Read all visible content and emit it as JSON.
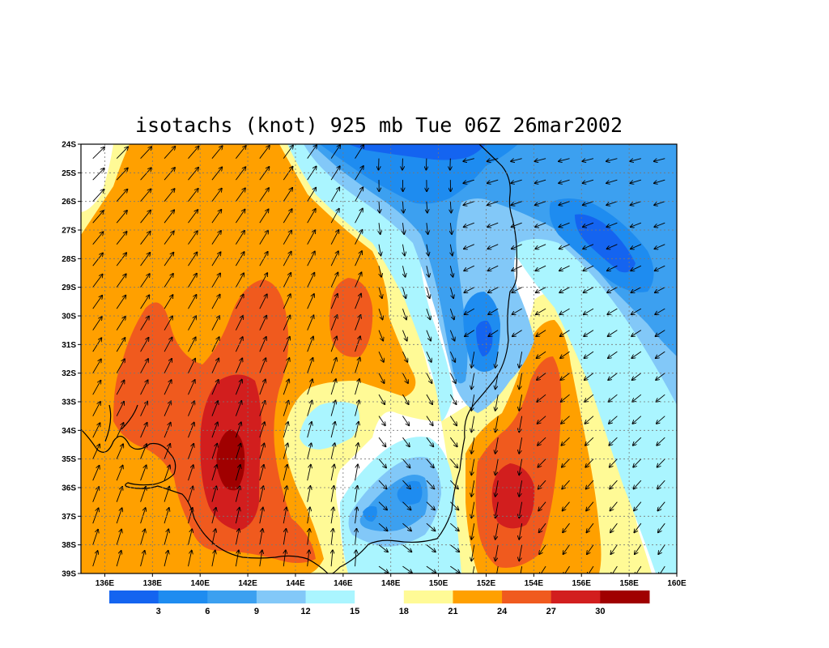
{
  "title": "isotachs (knot) 925 mb Tue 06Z 26mar2002",
  "map": {
    "lon_range": [
      135,
      160
    ],
    "lat_range": [
      -39,
      -24
    ],
    "grid": "dotted"
  },
  "lat_labels": [
    "24S",
    "25S",
    "26S",
    "27S",
    "28S",
    "29S",
    "30S",
    "31S",
    "32S",
    "33S",
    "34S",
    "35S",
    "36S",
    "37S",
    "38S",
    "39S"
  ],
  "lon_labels": [
    "136E",
    "138E",
    "140E",
    "142E",
    "144E",
    "146E",
    "148E",
    "150E",
    "152E",
    "154E",
    "156E",
    "158E",
    "160E"
  ],
  "colorbar": {
    "labels": [
      "3",
      "6",
      "9",
      "12",
      "15",
      "18",
      "21",
      "24",
      "27",
      "30"
    ],
    "colors": [
      "#1464F0",
      "#1E8CF0",
      "#3CA0F0",
      "#82C8F8",
      "#AAF5FF",
      "#FFFFFF",
      "#FFFA96",
      "#FFA000",
      "#F05A1E",
      "#D21E1E",
      "#A00000"
    ]
  },
  "chart_data": {
    "type": "heatmap",
    "title": "isotachs (knot) 925 mb Tue 06Z 26mar2002",
    "variable": "wind speed",
    "unit": "knot",
    "level": "925 mb",
    "valid_time": "Tue 06Z 26mar2002",
    "x_range_lon_E": [
      135,
      160
    ],
    "y_range_lat": [
      -39,
      -24
    ],
    "contour_levels": [
      3,
      6,
      9,
      12,
      15,
      18,
      21,
      24,
      27,
      30
    ],
    "features": [
      {
        "kind": "max",
        "lon": 141.3,
        "lat": -34.8,
        "value": 30
      },
      {
        "kind": "max",
        "lon": 152.7,
        "lat": -36.2,
        "value": 28
      },
      {
        "kind": "max",
        "lon": 146.2,
        "lat": -30.0,
        "value": 26
      },
      {
        "kind": "max",
        "lon": 138.5,
        "lat": -31.5,
        "value": 25
      },
      {
        "kind": "min",
        "lon": 151.0,
        "lat": -30.5,
        "value": 4
      },
      {
        "kind": "min",
        "lon": 156.0,
        "lat": -27.5,
        "value": 4
      },
      {
        "kind": "min",
        "lon": 149.5,
        "lat": -36.0,
        "value": 6
      },
      {
        "kind": "min",
        "lon": 149.5,
        "lat": -24.5,
        "value": 5
      },
      {
        "kind": "min",
        "lon": 145.5,
        "lat": -34.0,
        "value": 14
      }
    ]
  }
}
